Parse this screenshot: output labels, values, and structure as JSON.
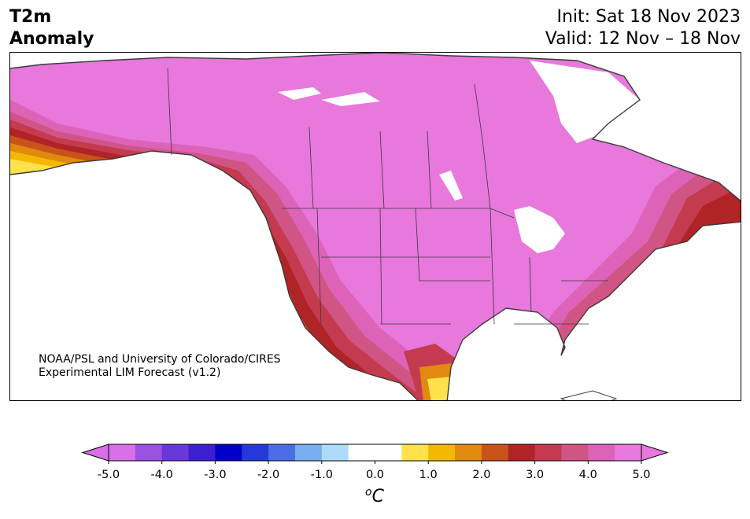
{
  "header": {
    "title_line1": "T2m",
    "title_line2": "Anomaly",
    "init": "Init: Sat 18 Nov 2023",
    "valid": "Valid: 12 Nov – 18 Nov"
  },
  "credit": {
    "line1": "NOAA/PSL and University of Colorado/CIRES",
    "line2": "Experimental LIM Forecast (v1.2)"
  },
  "colorbar": {
    "unit": "oC",
    "unit_base": "o",
    "unit_letter": "C",
    "min": -5.0,
    "max": 5.0,
    "step": 0.5,
    "tick_labels": [
      "-5.0",
      "-4.0",
      "-3.0",
      "-2.0",
      "-1.0",
      "0.0",
      "1.0",
      "2.0",
      "3.0",
      "4.0",
      "5.0"
    ],
    "colors": [
      "#d86fe8",
      "#9b52e0",
      "#6a37d8",
      "#3d1fd0",
      "#0000c8",
      "#2638d8",
      "#4a6ee6",
      "#76aef0",
      "#acdcf8",
      "#ffffff",
      "#ffffff",
      "#ffe14c",
      "#f4b800",
      "#e08a10",
      "#c9541a",
      "#b02326",
      "#c43a4e",
      "#d05585",
      "#dd63b8",
      "#e878dc"
    ],
    "under_color": "#d86fe8",
    "over_color": "#e878dc"
  },
  "map": {
    "ocean_color": "#ffffff",
    "border_color": "#3a3a3a"
  }
}
